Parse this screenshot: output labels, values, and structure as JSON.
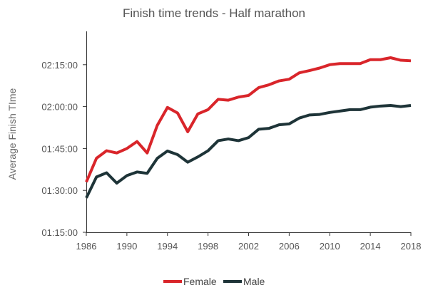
{
  "chart_data": {
    "type": "line",
    "title": "Finish time trends - Half marathon",
    "xlabel": "",
    "ylabel": "Average Finish TIme",
    "x": [
      1986,
      1987,
      1988,
      1989,
      1990,
      1991,
      1992,
      1993,
      1994,
      1995,
      1996,
      1997,
      1998,
      1999,
      2000,
      2001,
      2002,
      2003,
      2004,
      2005,
      2006,
      2007,
      2008,
      2009,
      2010,
      2011,
      2012,
      2013,
      2014,
      2015,
      2016,
      2017,
      2018
    ],
    "x_ticks": [
      1986,
      1990,
      1994,
      1998,
      2002,
      2006,
      2010,
      2014,
      2018
    ],
    "y_unit": "minutes",
    "ylim": [
      75,
      150
    ],
    "y_ticks": [
      75,
      90,
      105,
      120,
      135
    ],
    "y_tick_labels": [
      "01:15:00",
      "01:30:00",
      "01:45:00",
      "02:00:00",
      "02:15:00"
    ],
    "grid": false,
    "legend_position": "bottom-center",
    "series": [
      {
        "name": "Female",
        "color": "#d9252a",
        "values": [
          93.0,
          101.5,
          104.2,
          103.4,
          105.0,
          107.5,
          103.4,
          113.3,
          119.7,
          117.7,
          111.0,
          117.4,
          118.9,
          122.6,
          122.3,
          123.4,
          124.0,
          126.8,
          127.8,
          129.2,
          129.8,
          132.1,
          132.9,
          133.8,
          135.0,
          135.4,
          135.4,
          135.4,
          136.8,
          136.8,
          137.5,
          136.6,
          136.4
        ]
      },
      {
        "name": "Male",
        "color": "#1e3438",
        "values": [
          87.3,
          94.8,
          96.3,
          92.6,
          95.3,
          96.6,
          96.1,
          101.5,
          104.1,
          102.8,
          100.1,
          102.0,
          104.2,
          107.8,
          108.4,
          107.8,
          108.9,
          111.9,
          112.2,
          113.5,
          113.8,
          115.9,
          117.0,
          117.2,
          117.9,
          118.4,
          118.9,
          118.9,
          119.8,
          120.2,
          120.4,
          120.0,
          120.4
        ]
      }
    ]
  }
}
